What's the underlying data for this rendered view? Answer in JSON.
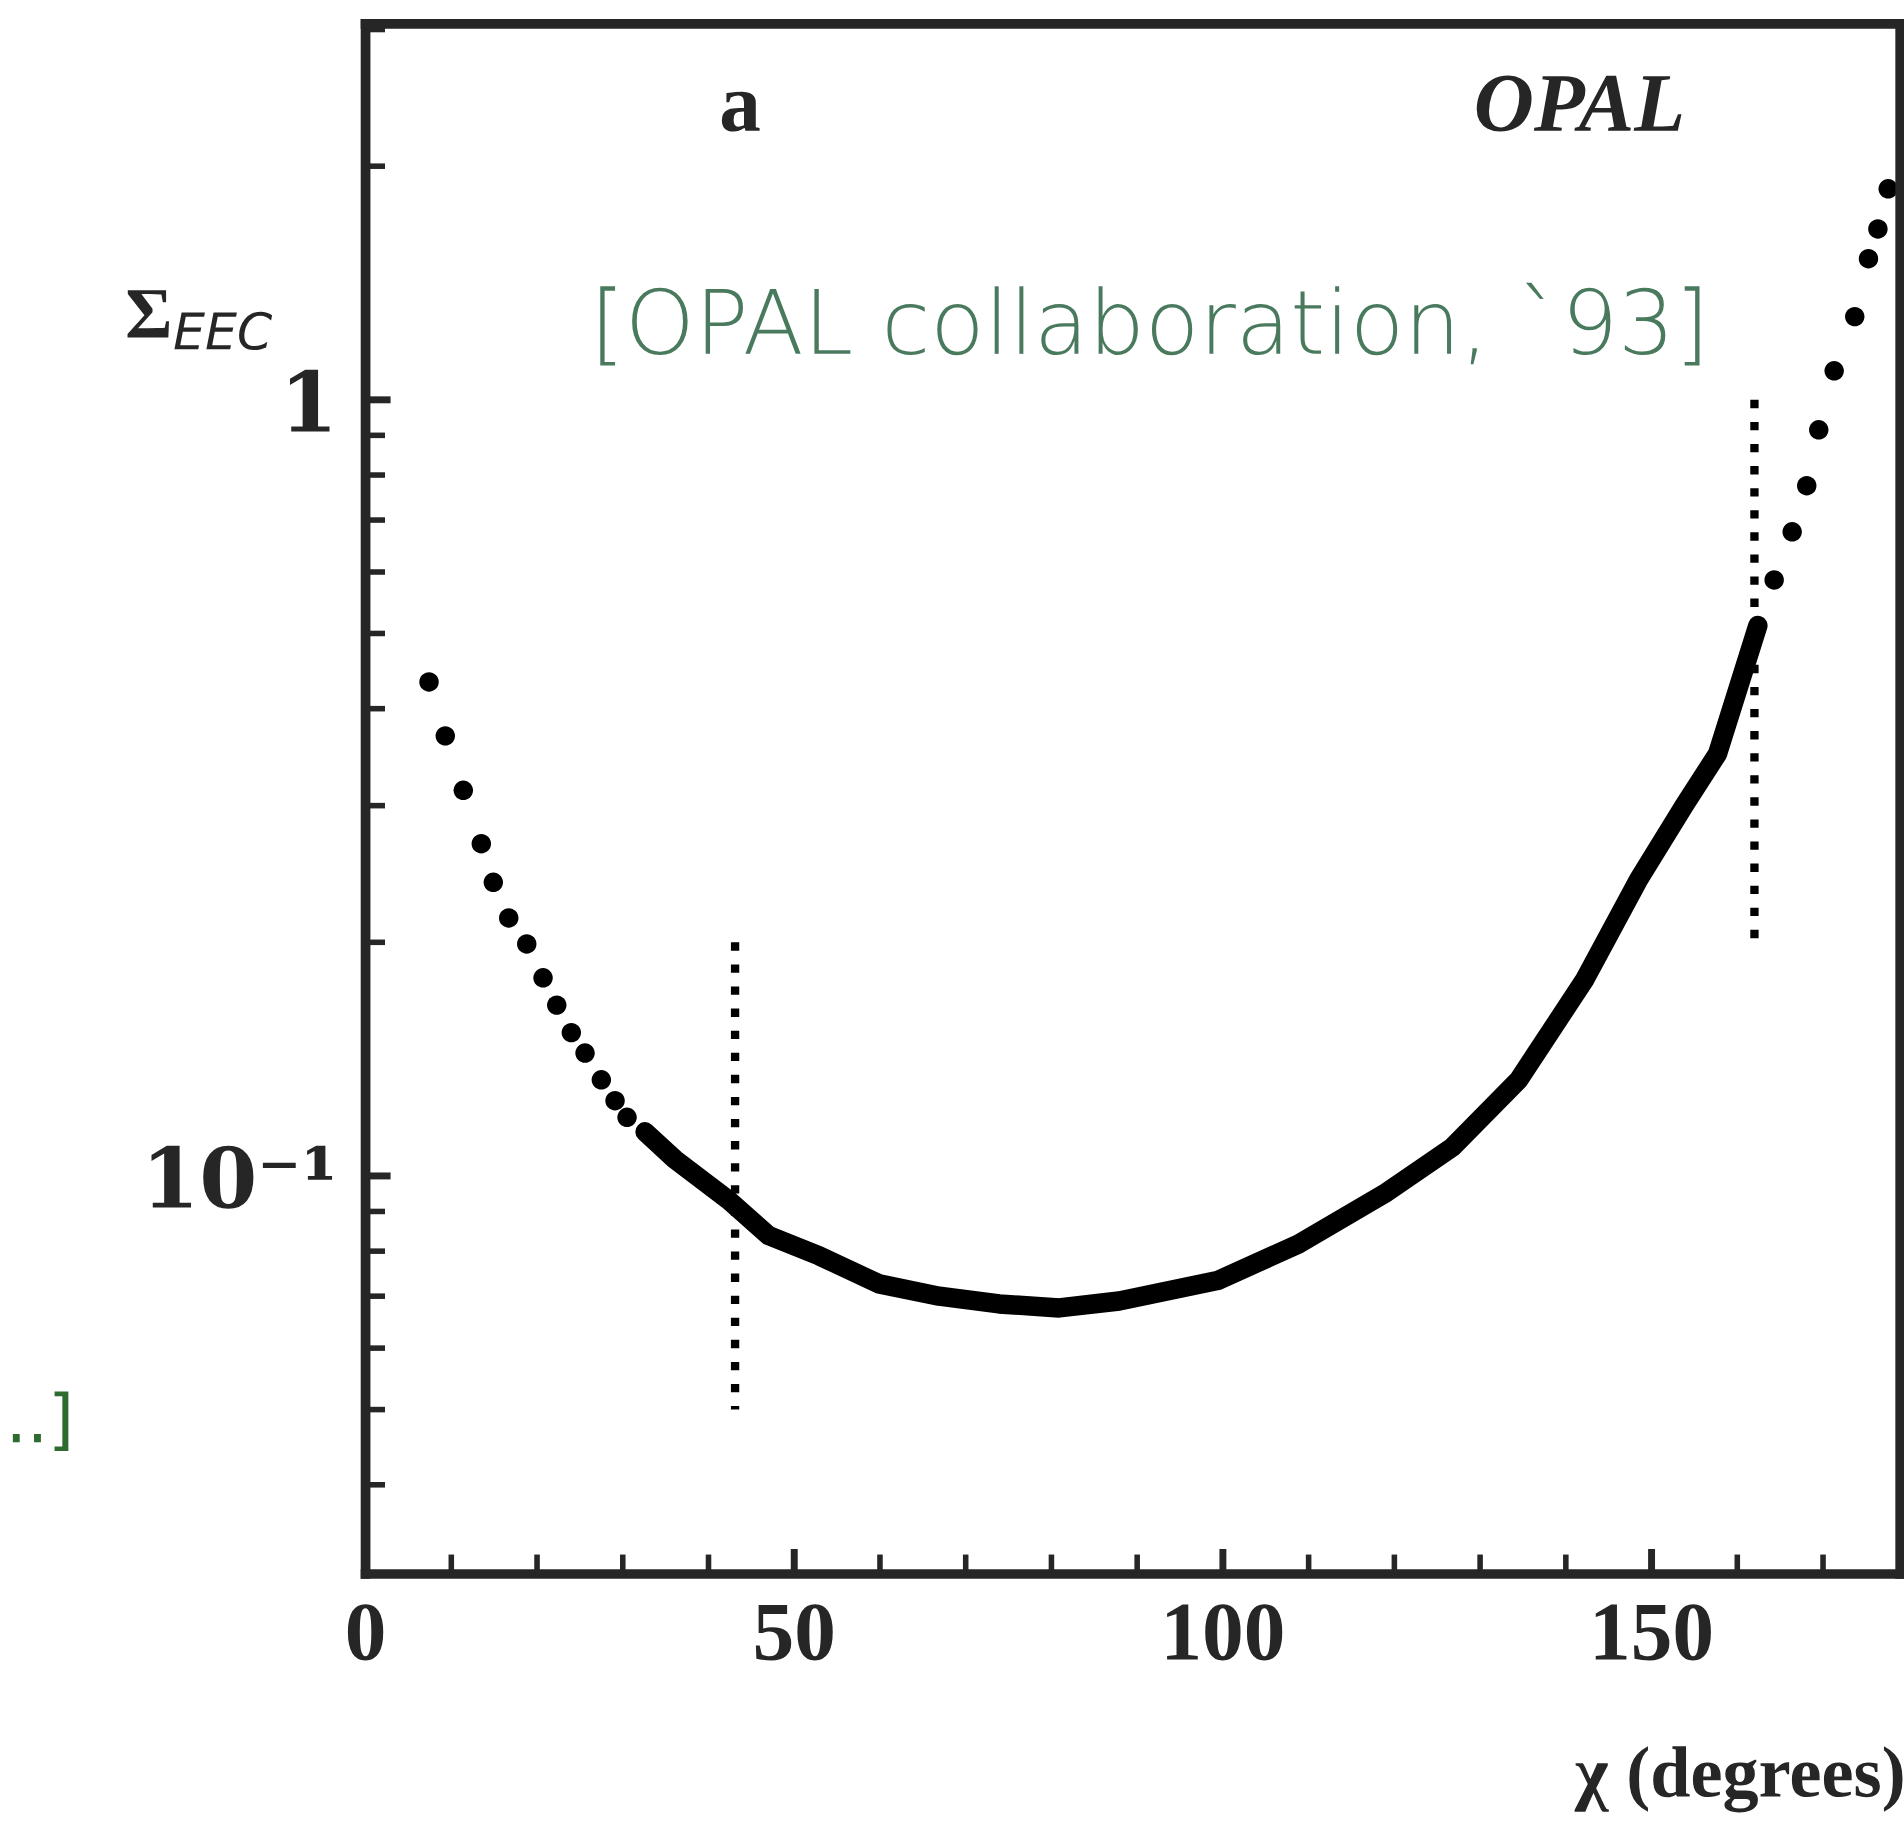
{
  "chart_data": {
    "type": "scatter",
    "xlabel": "χ (degrees)",
    "ylabel": "Σ$_{EEC}$",
    "annotations": [
      "a",
      "OPAL",
      "[OPAL collaboration, `93]",
      "..]"
    ],
    "xlim": [
      0,
      179
    ],
    "xticks": [
      0,
      50,
      100,
      150
    ],
    "ylim": [
      0.0307,
      3.05
    ],
    "yticks": [
      {
        "value": 1,
        "label": "1"
      },
      {
        "value": 0.1,
        "label": "10⁻¹"
      }
    ],
    "log": true,
    "grid": false,
    "legend": false,
    "series": [
      {
        "marker": "circle",
        "color": "#000000",
        "x": [
          7.4,
          9.3,
          11.4,
          13.5,
          14.9,
          16.7,
          18.8,
          20.7,
          22.3,
          24.0,
          25.6,
          27.5,
          29.1,
          30.5
        ],
        "values": [
          0.433,
          0.369,
          0.314,
          0.268,
          0.239,
          0.215,
          0.199,
          0.18,
          0.166,
          0.153,
          0.144,
          0.133,
          0.125,
          0.119
        ]
      },
      {
        "type": "line",
        "color": "#000000",
        "x": [
          32.6,
          36.1,
          42.4,
          47.0,
          52.9,
          59.9,
          66.9,
          73.9,
          80.9,
          87.9,
          99.5,
          108.8,
          118.8,
          126.8,
          134.5,
          142.2,
          148.5,
          153.8,
          157.7,
          162.4
        ],
        "values": [
          0.114,
          0.105,
          0.093,
          0.0838,
          0.0789,
          0.0726,
          0.07,
          0.0684,
          0.0676,
          0.069,
          0.0734,
          0.0817,
          0.0948,
          0.109,
          0.133,
          0.179,
          0.241,
          0.3,
          0.35,
          0.512
        ]
      },
      {
        "marker": "circle",
        "color": "#000000",
        "x": [
          164.3,
          166.4,
          168.1,
          169.5,
          171.3,
          173.7,
          175.3,
          176.4,
          177.6
        ],
        "values": [
          0.586,
          0.676,
          0.775,
          0.915,
          1.09,
          1.28,
          1.52,
          1.66,
          1.87
        ]
      },
      {
        "type": "line",
        "line_style": "dotted",
        "color": "#000000",
        "x": [
          43.1,
          43.1
        ],
        "values": [
          0.2,
          0.05
        ]
      },
      {
        "type": "line",
        "line_style": "dotted",
        "color": "#000000",
        "x": [
          162.0,
          162.0
        ],
        "values": [
          1.0,
          0.2
        ]
      }
    ]
  }
}
